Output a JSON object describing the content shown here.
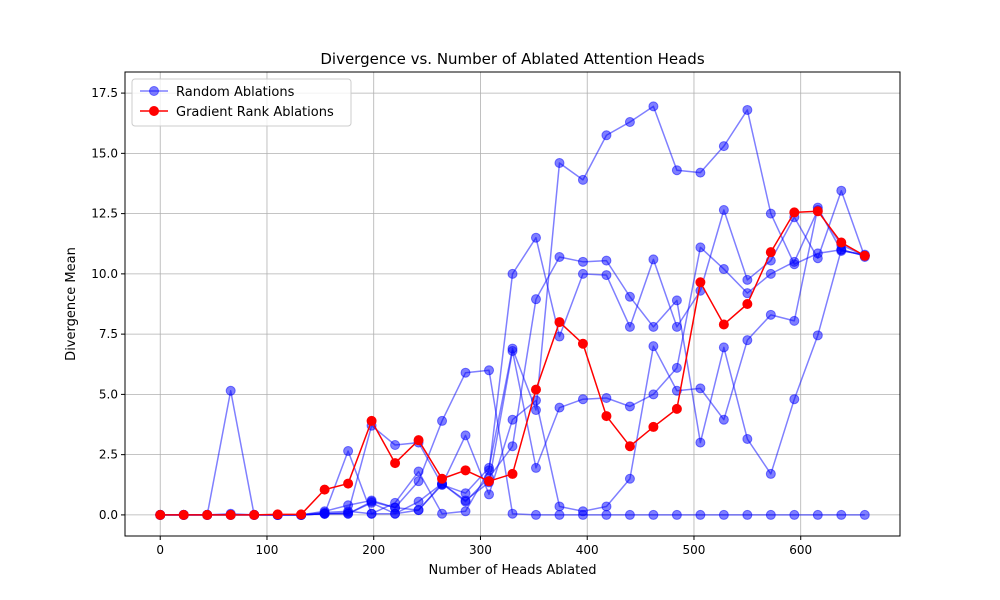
{
  "chart_data": {
    "type": "line",
    "title": "Divergence vs. Number of Ablated Attention Heads",
    "xlabel": "Number of Heads Ablated",
    "ylabel": "Divergence Mean",
    "xlim": [
      -33,
      693
    ],
    "ylim": [
      -0.875,
      18.375
    ],
    "x_ticks": [
      0,
      100,
      200,
      300,
      400,
      500,
      600
    ],
    "y_ticks": [
      0.0,
      2.5,
      5.0,
      7.5,
      10.0,
      12.5,
      15.0,
      17.5
    ],
    "x_tick_labels": [
      "0",
      "100",
      "200",
      "300",
      "400",
      "500",
      "600"
    ],
    "y_tick_labels": [
      "0.0",
      "2.5",
      "5.0",
      "7.5",
      "10.0",
      "12.5",
      "15.0",
      "17.5"
    ],
    "grid": true,
    "legend_position": "top-left",
    "legend": [
      "Random Ablations",
      "Gradient Rank Ablations"
    ],
    "colors": {
      "random": "#0000ff",
      "gradient": "#ff0000"
    },
    "x": [
      0,
      22,
      44,
      66,
      88,
      110,
      132,
      154,
      176,
      198,
      220,
      242,
      264,
      286,
      308,
      330,
      352,
      374,
      396,
      418,
      440,
      462,
      484,
      506,
      528,
      550,
      572,
      594,
      616,
      638,
      660
    ],
    "series": [
      {
        "name": "Random Ablations",
        "style": "random",
        "show_in_legend": true,
        "values": [
          0,
          0,
          0,
          0.05,
          0,
          0,
          0,
          0.15,
          0.4,
          0.6,
          0.3,
          1.4,
          3.9,
          5.9,
          6.0,
          0.05,
          0,
          0,
          0,
          0,
          0,
          0,
          0,
          0,
          0,
          0,
          0,
          0,
          0,
          0,
          0
        ]
      },
      {
        "name": "Random Ablations",
        "style": "random",
        "show_in_legend": false,
        "values": [
          0,
          0,
          0,
          5.15,
          0,
          0,
          0,
          0.05,
          0.1,
          3.7,
          2.9,
          3.0,
          1.25,
          0.9,
          1.95,
          6.9,
          4.35,
          14.6,
          13.9,
          15.75,
          16.3,
          16.95,
          14.3,
          14.2,
          15.3,
          16.8,
          12.5,
          10.4,
          10.85,
          11.0,
          10.75
        ]
      },
      {
        "name": "Random Ablations",
        "style": "random",
        "show_in_legend": false,
        "values": [
          0,
          0,
          0,
          0,
          0,
          0,
          0,
          0.05,
          2.65,
          0.05,
          0.5,
          1.8,
          0.05,
          0.15,
          1.85,
          10.0,
          11.5,
          7.4,
          10.0,
          9.95,
          7.8,
          10.6,
          7.8,
          9.3,
          12.65,
          9.75,
          10.55,
          12.35,
          10.65,
          13.45,
          10.7
        ]
      },
      {
        "name": "Random Ablations",
        "style": "random",
        "show_in_legend": false,
        "values": [
          0,
          0,
          0,
          0,
          0,
          0,
          0,
          0.05,
          0.05,
          0.5,
          0.05,
          0.55,
          1.3,
          0.6,
          1.35,
          6.8,
          1.95,
          4.45,
          4.8,
          4.85,
          4.5,
          5.0,
          6.1,
          11.1,
          10.2,
          9.2,
          10.0,
          10.5,
          12.65,
          11.2,
          10.75
        ]
      },
      {
        "name": "Random Ablations",
        "style": "random",
        "show_in_legend": false,
        "values": [
          0,
          0,
          0,
          0,
          0,
          0,
          0,
          0.05,
          0.05,
          0.55,
          0.3,
          0.2,
          1.25,
          3.3,
          0.85,
          3.95,
          4.75,
          0.35,
          0.15,
          0.35,
          1.5,
          7.0,
          5.15,
          5.25,
          3.95,
          7.25,
          8.3,
          8.05,
          12.75,
          10.95,
          10.8
        ]
      },
      {
        "name": "Random Ablations",
        "style": "random",
        "show_in_legend": false,
        "values": [
          0,
          0,
          0,
          0,
          0,
          0,
          0,
          0.1,
          0.15,
          0.05,
          0.05,
          0.2,
          1.3,
          0.55,
          1.55,
          2.85,
          8.95,
          10.7,
          10.5,
          10.55,
          9.05,
          7.8,
          8.9,
          3.0,
          6.95,
          3.15,
          1.7,
          4.8,
          7.45,
          11.0,
          10.75
        ]
      },
      {
        "name": "Gradient Rank Ablations",
        "style": "gradient",
        "show_in_legend": true,
        "values": [
          0,
          0,
          0,
          0,
          0,
          0.02,
          0.02,
          1.05,
          1.3,
          3.9,
          2.15,
          3.1,
          1.5,
          1.85,
          1.4,
          1.7,
          5.2,
          8.0,
          7.1,
          4.1,
          2.85,
          3.65,
          4.4,
          9.65,
          7.9,
          8.75,
          10.9,
          12.55,
          12.6,
          11.3,
          10.75
        ]
      }
    ]
  }
}
